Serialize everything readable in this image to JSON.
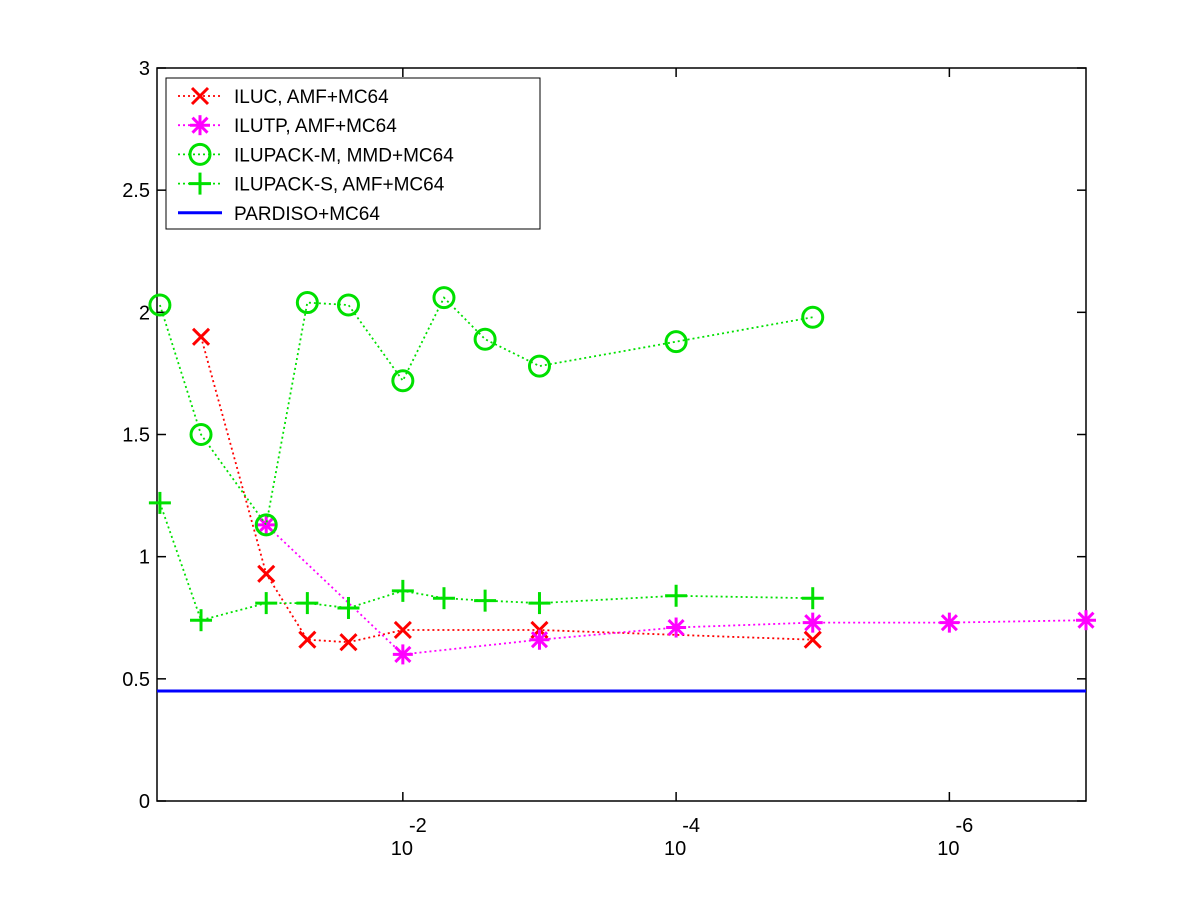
{
  "chart_data": {
    "type": "line",
    "x_scale": "log10-reversed",
    "xlim": [
      0.63,
      1e-07
    ],
    "ylim": [
      0,
      3
    ],
    "x_ticks": [
      {
        "value": 0.01,
        "base": "10",
        "exponent": "-2"
      },
      {
        "value": 0.0001,
        "base": "10",
        "exponent": "-4"
      },
      {
        "value": 1e-06,
        "base": "10",
        "exponent": "-6"
      }
    ],
    "y_ticks": [
      "0",
      "0.5",
      "1",
      "1.5",
      "2",
      "2.5",
      "3"
    ],
    "grid": false,
    "legend_position": "top-left",
    "series": [
      {
        "name": "ILUC, AMF+MC64",
        "color": "#ff0000",
        "marker": "x",
        "line": "dotted",
        "x": [
          0.3,
          0.1,
          0.05,
          0.025,
          0.01,
          0.001,
          1e-05
        ],
        "y": [
          1.9,
          0.93,
          0.66,
          0.65,
          0.7,
          0.7,
          0.66
        ]
      },
      {
        "name": "ILUTP, AMF+MC64",
        "color": "#ff00ff",
        "marker": "asterisk",
        "line": "dotted",
        "x": [
          0.1,
          0.01,
          0.001,
          0.0001,
          1e-05,
          1e-06,
          1e-07
        ],
        "y": [
          1.13,
          0.6,
          0.66,
          0.71,
          0.73,
          0.73,
          0.74
        ]
      },
      {
        "name": "ILUPACK-M, MMD+MC64",
        "color": "#00e000",
        "marker": "circle",
        "line": "dotted",
        "x": [
          0.6,
          0.3,
          0.1,
          0.05,
          0.025,
          0.01,
          0.005,
          0.0025,
          0.001,
          0.0001,
          1e-05
        ],
        "y": [
          2.03,
          1.5,
          1.13,
          2.04,
          2.03,
          1.72,
          2.06,
          1.89,
          1.78,
          1.88,
          1.98
        ]
      },
      {
        "name": "ILUPACK-S, AMF+MC64",
        "color": "#00e000",
        "marker": "plus",
        "line": "dotted",
        "x": [
          0.6,
          0.3,
          0.1,
          0.05,
          0.025,
          0.01,
          0.005,
          0.0025,
          0.001,
          0.0001,
          1e-05
        ],
        "y": [
          1.22,
          0.74,
          0.81,
          0.81,
          0.79,
          0.86,
          0.83,
          0.82,
          0.81,
          0.84,
          0.83
        ]
      },
      {
        "name": "PARDISO+MC64",
        "color": "#0000ff",
        "marker": "none",
        "line": "solid",
        "x": [
          0.63,
          1e-07
        ],
        "y": [
          0.45,
          0.45
        ]
      }
    ]
  }
}
